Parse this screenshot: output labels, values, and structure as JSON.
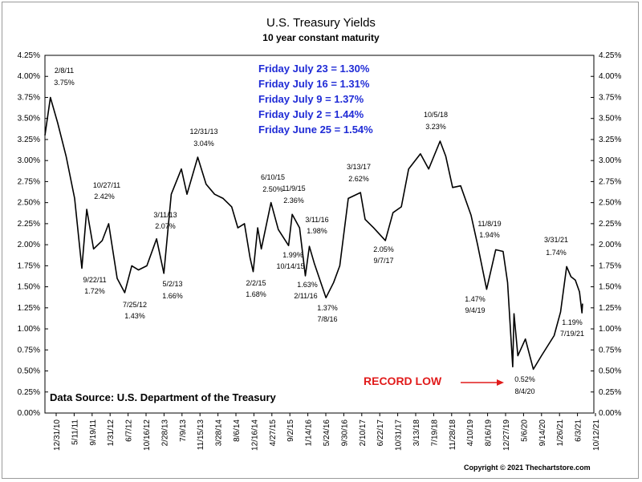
{
  "chart_data": {
    "type": "line",
    "title": "U.S. Treasury Yields",
    "subtitle": "10 year constant maturity",
    "ylim": [
      0,
      4.25
    ],
    "y_ticks": [
      "0.00%",
      "0.25%",
      "0.50%",
      "0.75%",
      "1.00%",
      "1.25%",
      "1.50%",
      "1.75%",
      "2.00%",
      "2.25%",
      "2.50%",
      "2.75%",
      "3.00%",
      "3.25%",
      "3.50%",
      "3.75%",
      "4.00%",
      "4.25%"
    ],
    "x_tick_labels": [
      "12/31/10",
      "5/11/11",
      "9/19/11",
      "1/31/12",
      "6/7/12",
      "10/16/12",
      "2/28/13",
      "7/9/13",
      "11/15/13",
      "3/28/14",
      "8/6/14",
      "12/16/14",
      "4/27/15",
      "9/2/15",
      "1/14/16",
      "5/24/16",
      "9/30/16",
      "2/10/17",
      "6/22/17",
      "10/31/17",
      "3/13/18",
      "7/19/18",
      "11/28/18",
      "4/10/19",
      "8/16/19",
      "12/27/19",
      "5/6/20",
      "9/14/20",
      "1/26/21",
      "6/3/21",
      "10/12/21"
    ],
    "grid": false,
    "series": [
      {
        "x": [
          "2010-12-31",
          "2011-02-08",
          "2011-04-01",
          "2011-06-01",
          "2011-08-01",
          "2011-09-22",
          "2011-10-27",
          "2011-12-15",
          "2012-02-15",
          "2012-04-01",
          "2012-06-01",
          "2012-07-25",
          "2012-09-14",
          "2012-11-01",
          "2012-12-31",
          "2013-03-11",
          "2013-05-02",
          "2013-06-24",
          "2013-09-05",
          "2013-10-15",
          "2013-12-31",
          "2014-03-01",
          "2014-05-01",
          "2014-07-01",
          "2014-09-01",
          "2014-10-15",
          "2014-12-01",
          "2015-01-10",
          "2015-02-02",
          "2015-03-06",
          "2015-04-01",
          "2015-06-10",
          "2015-08-01",
          "2015-10-14",
          "2015-11-09",
          "2016-01-01",
          "2016-02-11",
          "2016-03-11",
          "2016-04-15",
          "2016-07-08",
          "2016-09-01",
          "2016-10-15",
          "2016-12-15",
          "2017-03-13",
          "2017-04-15",
          "2017-06-15",
          "2017-09-07",
          "2017-11-01",
          "2017-12-31",
          "2018-02-21",
          "2018-05-17",
          "2018-07-15",
          "2018-10-05",
          "2018-11-15",
          "2019-01-03",
          "2019-03-01",
          "2019-05-15",
          "2019-07-01",
          "2019-09-04",
          "2019-11-08",
          "2019-12-31",
          "2020-02-01",
          "2020-03-09",
          "2020-03-18",
          "2020-04-15",
          "2020-06-08",
          "2020-08-04",
          "2020-10-01",
          "2020-12-31",
          "2021-02-15",
          "2021-03-31",
          "2021-05-01",
          "2021-06-01",
          "2021-07-01",
          "2021-07-19",
          "2021-07-23"
        ],
        "values": [
          3.3,
          3.75,
          3.45,
          3.05,
          2.55,
          1.72,
          2.42,
          1.95,
          2.05,
          2.25,
          1.6,
          1.43,
          1.75,
          1.7,
          1.75,
          2.07,
          1.66,
          2.6,
          2.9,
          2.6,
          3.04,
          2.72,
          2.6,
          2.55,
          2.45,
          2.2,
          2.25,
          1.85,
          1.68,
          2.2,
          1.95,
          2.5,
          2.18,
          1.99,
          2.36,
          2.2,
          1.63,
          1.98,
          1.78,
          1.37,
          1.55,
          1.75,
          2.55,
          2.62,
          2.3,
          2.2,
          2.05,
          2.38,
          2.45,
          2.9,
          3.08,
          2.9,
          3.23,
          3.05,
          2.68,
          2.7,
          2.35,
          2.0,
          1.47,
          1.94,
          1.92,
          1.55,
          0.55,
          1.18,
          0.68,
          0.88,
          0.52,
          0.68,
          0.92,
          1.2,
          1.74,
          1.62,
          1.58,
          1.44,
          1.19,
          1.3
        ]
      }
    ],
    "annotations": [
      {
        "date": "2/8/11",
        "value": "3.75%"
      },
      {
        "date": "10/27/11",
        "value": "2.42%"
      },
      {
        "date": "9/22/11",
        "value": "1.72%"
      },
      {
        "date": "7/25/12",
        "value": "1.43%"
      },
      {
        "date": "3/11/13",
        "value": "2.07%"
      },
      {
        "date": "5/2/13",
        "value": "1.66%"
      },
      {
        "date": "12/31/13",
        "value": "3.04%"
      },
      {
        "date": "2/2/15",
        "value": "1.68%"
      },
      {
        "date": "6/10/15",
        "value": "2.50%"
      },
      {
        "date": "11/9/15",
        "value": "2.36%"
      },
      {
        "date": "10/14/15",
        "value": "1.99%"
      },
      {
        "date": "3/11/16",
        "value": "1.98%"
      },
      {
        "date": "2/11/16",
        "value": "1.63%"
      },
      {
        "date": "7/8/16",
        "value": "1.37%"
      },
      {
        "date": "3/13/17",
        "value": "2.62%"
      },
      {
        "date": "9/7/17",
        "value": "2.05%"
      },
      {
        "date": "10/5/18",
        "value": "3.23%"
      },
      {
        "date": "11/8/19",
        "value": "1.94%"
      },
      {
        "date": "9/4/19",
        "value": "1.47%"
      },
      {
        "date": "8/4/20",
        "value": "0.52%"
      },
      {
        "date": "3/31/21",
        "value": "1.74%"
      },
      {
        "date": "7/19/21",
        "value": "1.19%"
      }
    ],
    "recent_yields": [
      "Friday July 23 = 1.30%",
      "Friday July 16 = 1.31%",
      "Friday July 9 = 1.37%",
      "Friday July 2 = 1.44%",
      "Friday June 25 = 1.54%"
    ],
    "record_low_label": "RECORD LOW",
    "source": "Data Source:  U.S. Department of the Treasury",
    "copyright": "Copyright © 2021 Thechartstore.com"
  },
  "colors": {
    "line": "#000000",
    "recent_text": "#1f2bd6",
    "record_low": "#e11b1b"
  }
}
